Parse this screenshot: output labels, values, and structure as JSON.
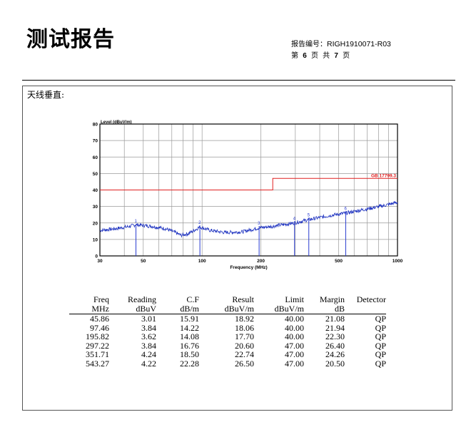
{
  "header": {
    "title": "测试报告",
    "report_no_label": "报告编号：",
    "report_no": "RIGH1910071-R03",
    "page_prefix": "第",
    "page_current": "6",
    "page_mid1": "页 共",
    "page_total": "7",
    "page_suffix": "页"
  },
  "section_label": "天线垂直:",
  "chart_data": {
    "type": "line",
    "ylabel": "Level (dBuV/m)",
    "xlabel": "Frequency (MHz)",
    "x_scale": "log",
    "xlim": [
      30,
      1000
    ],
    "ylim": [
      0,
      80
    ],
    "x_ticks": [
      30,
      50,
      100,
      200,
      500,
      1000
    ],
    "x_tick_labels": [
      "30",
      "50",
      "100",
      "200",
      "500",
      "1000"
    ],
    "y_ticks": [
      0,
      10,
      20,
      30,
      40,
      50,
      60,
      70,
      80
    ],
    "y_tick_labels": [
      "0",
      "10",
      "20",
      "30",
      "40",
      "50",
      "60",
      "70",
      "80"
    ],
    "grid": true,
    "limit_line": {
      "name": "GB 17799.3",
      "points": [
        [
          30,
          40
        ],
        [
          230,
          40
        ],
        [
          230,
          47
        ],
        [
          1000,
          47
        ]
      ],
      "color": "#e02020"
    },
    "trace": {
      "color": "#1a2fbf",
      "points": [
        [
          30,
          15.5
        ],
        [
          36,
          16.5
        ],
        [
          42,
          17.8
        ],
        [
          45.86,
          18.9
        ],
        [
          55,
          18.0
        ],
        [
          65,
          16.5
        ],
        [
          72,
          14.5
        ],
        [
          78,
          12.5
        ],
        [
          85,
          13.5
        ],
        [
          97.46,
          17.5
        ],
        [
          110,
          15.5
        ],
        [
          130,
          14.2
        ],
        [
          160,
          14.6
        ],
        [
          195.82,
          17.0
        ],
        [
          230,
          18.0
        ],
        [
          297.22,
          20.0
        ],
        [
          351.71,
          22.0
        ],
        [
          450,
          24.5
        ],
        [
          543.27,
          26.0
        ],
        [
          700,
          28.5
        ],
        [
          850,
          30.5
        ],
        [
          1000,
          32.5
        ]
      ]
    },
    "markers": [
      {
        "label": "1",
        "x": 45.86,
        "y": 18.92
      },
      {
        "label": "2",
        "x": 97.46,
        "y": 18.06
      },
      {
        "label": "3",
        "x": 195.82,
        "y": 17.7
      },
      {
        "label": "4",
        "x": 297.22,
        "y": 20.6
      },
      {
        "label": "5",
        "x": 351.71,
        "y": 22.74
      },
      {
        "label": "6",
        "x": 543.27,
        "y": 26.5
      }
    ]
  },
  "table": {
    "headers": [
      "Freq",
      "Reading",
      "C.F",
      "Result",
      "Limit",
      "Margin",
      "Detector"
    ],
    "units": [
      "MHz",
      "dBuV",
      "dB/m",
      "dBuV/m",
      "dBuV/m",
      "dB",
      ""
    ],
    "rows": [
      [
        "45.86",
        "3.01",
        "15.91",
        "18.92",
        "40.00",
        "21.08",
        "QP"
      ],
      [
        "97.46",
        "3.84",
        "14.22",
        "18.06",
        "40.00",
        "21.94",
        "QP"
      ],
      [
        "195.82",
        "3.62",
        "14.08",
        "17.70",
        "40.00",
        "22.30",
        "QP"
      ],
      [
        "297.22",
        "3.84",
        "16.76",
        "20.60",
        "47.00",
        "26.40",
        "QP"
      ],
      [
        "351.71",
        "4.24",
        "18.50",
        "22.74",
        "47.00",
        "24.26",
        "QP"
      ],
      [
        "543.27",
        "4.22",
        "22.28",
        "26.50",
        "47.00",
        "20.50",
        "QP"
      ]
    ]
  }
}
